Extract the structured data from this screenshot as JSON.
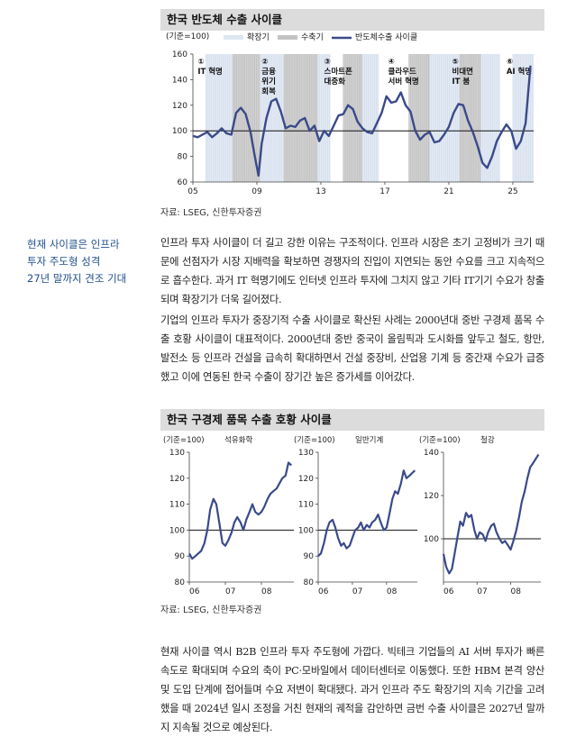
{
  "chart1": {
    "title": "한국 반도체 수출 사이클",
    "unit": "(기준=100)",
    "legend": {
      "expansion": "확장기",
      "contraction": "수축기",
      "series": "반도체수출 사이클"
    },
    "source": "자료: LSEG, 신한투자증권"
  },
  "side_note": {
    "lines": [
      "현재 사이클은 인프라",
      "투자 주도형 성격",
      "27년 말까지 견조 기대"
    ]
  },
  "paragraphs": {
    "p1": "인프라 투자 사이클이 더 길고 강한 이유는 구조적이다. 인프라 시장은 초기 고정비가 크기 때문에 선점자가 시장 지배력을 확보하면 경쟁자의 진입이 지연되는 동안 수요를 크고 지속적으로 흡수한다. 과거 IT 혁명기에도 인터넷 인프라 투자에 그치지 않고 기타 IT기기 수요가 창출되며 확장기가 더욱 길어졌다.",
    "p2": "기업의 인프라 투자가 중장기적 수출 사이클로 확산된 사례는 2000년대 중반 구경제 품목 수출 호황 사이클이 대표적이다. 2000년대 중반 중국이 올림픽과 도시화를 앞두고 철도, 항만, 발전소 등 인프라 건설을 급속히 확대하면서 건설 중장비, 산업용 기계 등 중간재 수요가 급증했고 이에 연동된 한국 수출이 장기간 높은 증가세를 이어갔다.",
    "p3": "현재 사이클 역시 B2B 인프라 투자 주도형에 가깝다. 빅테크 기업들의 AI 서버 투자가 빠른 속도로 확대되며 수요의 축이 PC·모바일에서 데이터센터로 이동했다. 또한 HBM 본격 양산 및 도입 단계에 접어들며 수요 저변이 확대됐다. 과거 인프라 주도 확장기의 지속 기간을 고려했을 때 2024년 일시 조정을 거친 현재의 궤적을 감안하면 금번 수출 사이클은 2027년 말까지 지속될 것으로 예상된다."
  },
  "chart2": {
    "title": "한국 구경제 품목 수출 호황 사이클",
    "source": "자료: LSEG, 신한투자증권"
  },
  "chart_data": [
    {
      "type": "line",
      "title": "한국 반도체 수출 사이클",
      "ylabel": "(기준=100)",
      "xlabel": "",
      "x_tick_labels": [
        "05",
        "09",
        "13",
        "17",
        "21",
        "25"
      ],
      "x_ticks": [
        2005,
        2009,
        2013,
        2017,
        2021,
        2025
      ],
      "xlim": [
        2005,
        2026.3
      ],
      "ylim": [
        60,
        160
      ],
      "y_ticks": [
        60,
        80,
        100,
        120,
        140,
        160
      ],
      "reference_line": 100,
      "legend_position": "top",
      "series": [
        {
          "name": "반도체수출 사이클",
          "color": "#3a4a8a",
          "x": [
            2005.0,
            2005.3,
            2005.6,
            2005.9,
            2006.2,
            2006.5,
            2006.8,
            2007.1,
            2007.4,
            2007.7,
            2008.0,
            2008.3,
            2008.6,
            2008.9,
            2009.1,
            2009.3,
            2009.6,
            2009.9,
            2010.2,
            2010.5,
            2010.8,
            2011.1,
            2011.4,
            2011.7,
            2012.0,
            2012.3,
            2012.6,
            2012.9,
            2013.2,
            2013.5,
            2013.8,
            2014.1,
            2014.4,
            2014.7,
            2015.0,
            2015.3,
            2015.6,
            2015.9,
            2016.2,
            2016.5,
            2016.8,
            2017.1,
            2017.4,
            2017.7,
            2018.0,
            2018.3,
            2018.6,
            2018.9,
            2019.2,
            2019.5,
            2019.8,
            2020.1,
            2020.4,
            2020.7,
            2021.0,
            2021.3,
            2021.6,
            2021.9,
            2022.2,
            2022.5,
            2022.8,
            2023.1,
            2023.4,
            2023.7,
            2024.0,
            2024.3,
            2024.6,
            2024.9,
            2025.2,
            2025.5,
            2025.8,
            2026.1
          ],
          "values": [
            96,
            95,
            97,
            99,
            95,
            98,
            102,
            98,
            97,
            114,
            118,
            113,
            99,
            78,
            65,
            90,
            110,
            123,
            125,
            115,
            102,
            104,
            103,
            108,
            110,
            100,
            104,
            92,
            100,
            96,
            104,
            112,
            113,
            120,
            117,
            107,
            102,
            99,
            98,
            106,
            114,
            127,
            122,
            123,
            130,
            120,
            115,
            100,
            93,
            97,
            99,
            91,
            92,
            97,
            103,
            114,
            121,
            120,
            108,
            99,
            88,
            75,
            71,
            80,
            92,
            99,
            105,
            100,
            86,
            92,
            106,
            151
          ]
        }
      ],
      "expansion_periods": [
        [
          2005.8,
          2007.5
        ],
        [
          2009.2,
          2010.7
        ],
        [
          2012.8,
          2013.6
        ],
        [
          2015.6,
          2016.6
        ],
        [
          2019.8,
          2021.7
        ],
        [
          2023.0,
          2024.2
        ],
        [
          2025.0,
          2026.3
        ]
      ],
      "contraction_periods": [
        [
          2007.5,
          2009.2
        ],
        [
          2010.7,
          2012.8
        ],
        [
          2014.4,
          2015.6
        ],
        [
          2018.5,
          2019.8
        ],
        [
          2021.7,
          2023.0
        ]
      ],
      "annotations": [
        {
          "x": 2005.3,
          "label": [
            "①",
            "IT 혁명"
          ]
        },
        {
          "x": 2009.3,
          "label": [
            "②",
            "금융",
            "위기",
            "회복"
          ]
        },
        {
          "x": 2013.2,
          "label": [
            "③",
            "스마트폰",
            "대중화"
          ]
        },
        {
          "x": 2017.2,
          "label": [
            "④",
            "클라우드",
            "서버 혁명"
          ]
        },
        {
          "x": 2021.2,
          "label": [
            "⑤",
            "비대면",
            "IT 붐"
          ]
        },
        {
          "x": 2024.6,
          "label": [
            "⑥",
            "AI 혁명"
          ]
        }
      ]
    },
    {
      "type": "line",
      "title": "석유화학",
      "ylabel": "(기준=100)",
      "x_tick_labels": [
        "06",
        "07",
        "08"
      ],
      "x_ticks": [
        2006,
        2007,
        2008
      ],
      "xlim": [
        2006,
        2008.9
      ],
      "ylim": [
        80,
        130
      ],
      "y_ticks": [
        80,
        90,
        100,
        110,
        120,
        130
      ],
      "reference_line": 100,
      "series": [
        {
          "color": "#3a4a8a",
          "x": [
            2006.0,
            2006.08,
            2006.17,
            2006.25,
            2006.33,
            2006.42,
            2006.5,
            2006.58,
            2006.67,
            2006.75,
            2006.83,
            2006.92,
            2007.0,
            2007.08,
            2007.17,
            2007.25,
            2007.33,
            2007.42,
            2007.5,
            2007.58,
            2007.67,
            2007.75,
            2007.83,
            2007.92,
            2008.0,
            2008.08,
            2008.17,
            2008.25,
            2008.33,
            2008.42,
            2008.5,
            2008.58,
            2008.67,
            2008.75,
            2008.83
          ],
          "values": [
            91,
            89,
            90,
            91,
            92,
            95,
            100,
            108,
            112,
            110,
            103,
            95,
            94,
            96,
            99,
            103,
            105,
            103,
            100,
            104,
            107,
            110,
            107,
            106,
            107,
            109,
            112,
            114,
            115,
            116,
            118,
            120,
            121,
            126,
            125
          ]
        }
      ]
    },
    {
      "type": "line",
      "title": "일반기계",
      "ylabel": "(기준=100)",
      "x_tick_labels": [
        "06",
        "07",
        "08"
      ],
      "x_ticks": [
        2006,
        2007,
        2008
      ],
      "xlim": [
        2006,
        2008.9
      ],
      "ylim": [
        80,
        130
      ],
      "y_ticks": [
        80,
        90,
        100,
        110,
        120,
        130
      ],
      "reference_line": 100,
      "series": [
        {
          "color": "#3a4a8a",
          "x": [
            2006.0,
            2006.08,
            2006.17,
            2006.25,
            2006.33,
            2006.42,
            2006.5,
            2006.58,
            2006.67,
            2006.75,
            2006.83,
            2006.92,
            2007.0,
            2007.08,
            2007.17,
            2007.25,
            2007.33,
            2007.42,
            2007.5,
            2007.58,
            2007.67,
            2007.75,
            2007.83,
            2007.92,
            2008.0,
            2008.08,
            2008.17,
            2008.25,
            2008.33,
            2008.42,
            2008.5,
            2008.58,
            2008.67,
            2008.75,
            2008.83
          ],
          "values": [
            90,
            91,
            95,
            100,
            103,
            104,
            101,
            97,
            94,
            95,
            93,
            94,
            97,
            100,
            101,
            103,
            100,
            102,
            101,
            103,
            104,
            106,
            103,
            100,
            101,
            106,
            112,
            115,
            114,
            118,
            123,
            120,
            121,
            122,
            123
          ]
        }
      ]
    },
    {
      "type": "line",
      "title": "철강",
      "ylabel": "(기준=100)",
      "x_tick_labels": [
        "06",
        "07",
        "08"
      ],
      "x_ticks": [
        2006,
        2007,
        2008
      ],
      "xlim": [
        2006,
        2008.9
      ],
      "ylim": [
        80,
        140
      ],
      "y_ticks": [
        100,
        120,
        140
      ],
      "reference_line": 100,
      "series": [
        {
          "color": "#3a4a8a",
          "x": [
            2006.0,
            2006.08,
            2006.17,
            2006.25,
            2006.33,
            2006.42,
            2006.5,
            2006.58,
            2006.67,
            2006.75,
            2006.83,
            2006.92,
            2007.0,
            2007.08,
            2007.17,
            2007.25,
            2007.33,
            2007.42,
            2007.5,
            2007.58,
            2007.67,
            2007.75,
            2007.83,
            2007.92,
            2008.0,
            2008.08,
            2008.17,
            2008.25,
            2008.33,
            2008.42,
            2008.5,
            2008.58,
            2008.67,
            2008.75,
            2008.83
          ],
          "values": [
            93,
            87,
            84,
            86,
            93,
            101,
            108,
            106,
            112,
            110,
            111,
            104,
            100,
            103,
            102,
            99,
            103,
            106,
            107,
            103,
            100,
            98,
            99,
            97,
            95,
            99,
            104,
            110,
            117,
            122,
            128,
            133,
            135,
            137,
            139
          ]
        }
      ]
    }
  ]
}
